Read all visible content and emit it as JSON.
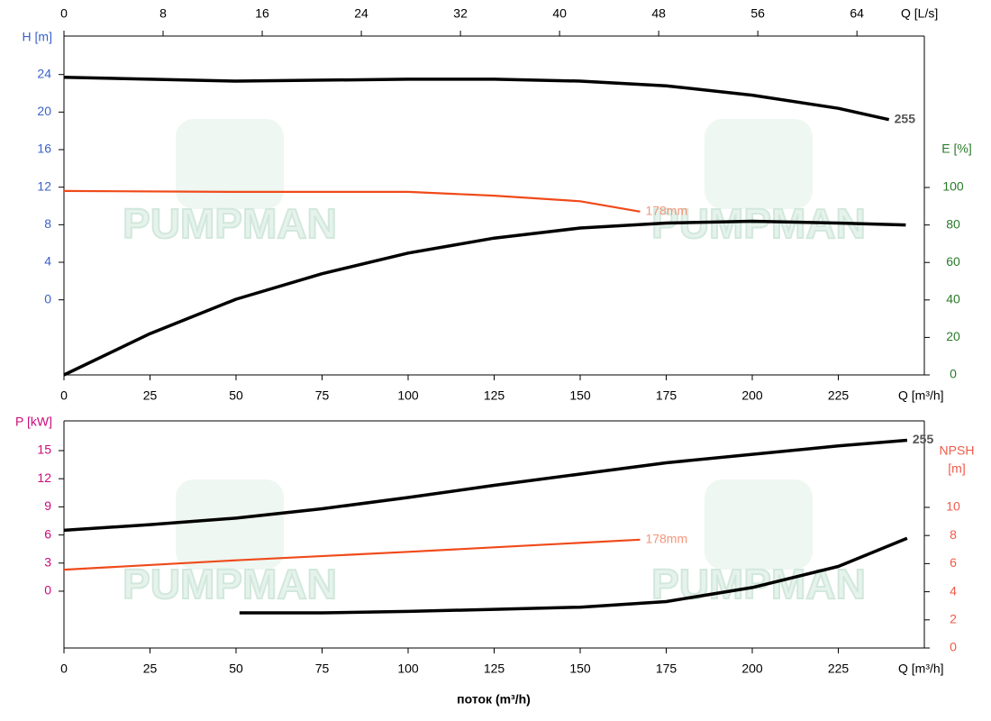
{
  "watermark": "PUMPMAN",
  "chart_data": [
    {
      "type": "line",
      "x2label": "Q [L/s]",
      "x2lim": [
        0,
        69.44
      ],
      "x2ticks": [
        0,
        8,
        16,
        24,
        32,
        40,
        48,
        56,
        64
      ],
      "xlabel": "Q [m³/h]",
      "xlim": [
        0,
        250
      ],
      "xticks": [
        0,
        25,
        50,
        75,
        100,
        125,
        150,
        175,
        200,
        225
      ],
      "ylabel": "H [m]",
      "ycolor": "#3a62c8",
      "ylim": [
        -8,
        28.1
      ],
      "yticks": [
        0,
        4,
        8,
        12,
        16,
        20,
        24
      ],
      "y2label": [
        "E [%]"
      ],
      "y2color": "#2a7a2a",
      "y2lim": [
        0,
        180.8
      ],
      "y2ticks": [
        0,
        20,
        40,
        60,
        80,
        100
      ],
      "series": [
        {
          "name": "255",
          "color": "#000000",
          "label_color": "#555555",
          "x": [
            0,
            50,
            100,
            125,
            150,
            175,
            200,
            225,
            239.7
          ],
          "values": [
            23.7,
            23.3,
            23.5,
            23.5,
            23.3,
            22.8,
            21.8,
            20.4,
            19.2
          ]
        },
        {
          "name": "178mm",
          "color": "#f04a1a",
          "label_color": "#f4967a",
          "x": [
            0,
            50,
            100,
            125,
            150,
            167.4
          ],
          "values": [
            11.6,
            11.5,
            11.5,
            11.1,
            10.5,
            9.4
          ]
        },
        {
          "color": "#000000",
          "axis": "y2",
          "x": [
            0,
            25,
            50,
            75,
            100,
            125,
            150,
            175,
            200,
            225,
            244.6
          ],
          "values": [
            0,
            22,
            40.4,
            54,
            65,
            73,
            78.4,
            81,
            82,
            81,
            80
          ]
        }
      ]
    },
    {
      "type": "line",
      "xlabel": "Q [m³/h]",
      "xlim": [
        0,
        250
      ],
      "xticks": [
        0,
        25,
        50,
        75,
        100,
        125,
        150,
        175,
        200,
        225
      ],
      "axis_title": "поток (m³/h)",
      "ylabel": "P [kW]",
      "ycolor": "#cc0a7a",
      "ylim": [
        -6.06,
        18.17
      ],
      "yticks": [
        0,
        3,
        6,
        9,
        12,
        15
      ],
      "y2label": [
        "NPSH",
        "[m]"
      ],
      "y2color": "#f05a4a",
      "y2lim": [
        0,
        16.15
      ],
      "y2ticks": [
        0,
        2,
        4,
        6,
        8,
        10
      ],
      "series": [
        {
          "name": "255",
          "color": "#000000",
          "label_color": "#555555",
          "x": [
            0,
            25,
            50,
            75,
            100,
            125,
            150,
            175,
            200,
            225,
            245
          ],
          "values": [
            6.5,
            7.1,
            7.8,
            8.8,
            10.0,
            11.3,
            12.5,
            13.7,
            14.6,
            15.5,
            16.1
          ]
        },
        {
          "name": "178mm",
          "color": "#f04a1a",
          "label_color": "#f4967a",
          "x": [
            0,
            50,
            100,
            167.4
          ],
          "values": [
            2.3,
            3.3,
            4.2,
            5.5
          ]
        },
        {
          "color": "#000000",
          "axis": "y2",
          "x": [
            51,
            75,
            100,
            125,
            150,
            175,
            200,
            225,
            245
          ],
          "values": [
            2.5,
            2.5,
            2.6,
            2.75,
            2.9,
            3.3,
            4.3,
            5.8,
            7.8
          ]
        }
      ]
    }
  ]
}
